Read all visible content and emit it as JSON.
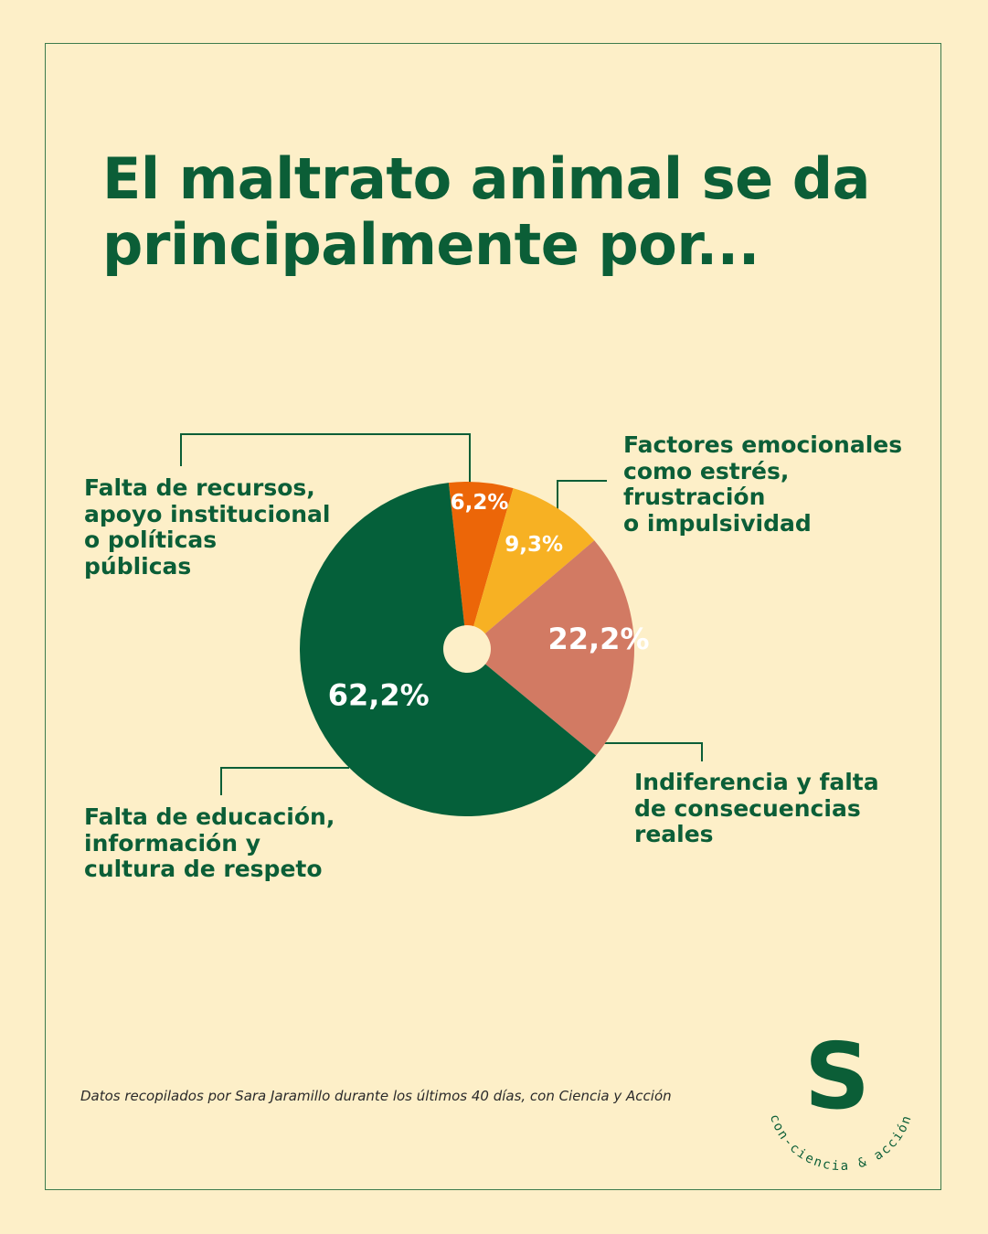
{
  "title": "El maltrato animal se da principalmente por...",
  "footnote": "Datos recopilados por Sara Jaramillo durante los últimos 40 días, con Ciencia y Acción",
  "brand": {
    "mark": "S",
    "tagline": "con-ciencia & acción",
    "color": "#0b5e37"
  },
  "colors": {
    "background": "#fdefc8",
    "primary": "#0b5e37"
  },
  "chart_data": {
    "type": "pie",
    "donut_hole": true,
    "slices": [
      {
        "label": "Falta de recursos,\napoyo institucional\no políticas\npúblicas",
        "value": 6.2,
        "value_label": "6,2%",
        "color": "#ec6608"
      },
      {
        "label": "Factores emocionales\ncomo estrés,\nfrustración\no impulsividad",
        "value": 9.3,
        "value_label": "9,3%",
        "color": "#f7b123"
      },
      {
        "label": "Indiferencia y falta\nde consecuencias\nreales",
        "value": 22.2,
        "value_label": "22,2%",
        "color": "#d27a63"
      },
      {
        "label": "Falta de educación,\ninformación y\ncultura de respeto",
        "value": 62.2,
        "value_label": "62,2%",
        "color": "#05603a"
      }
    ]
  }
}
